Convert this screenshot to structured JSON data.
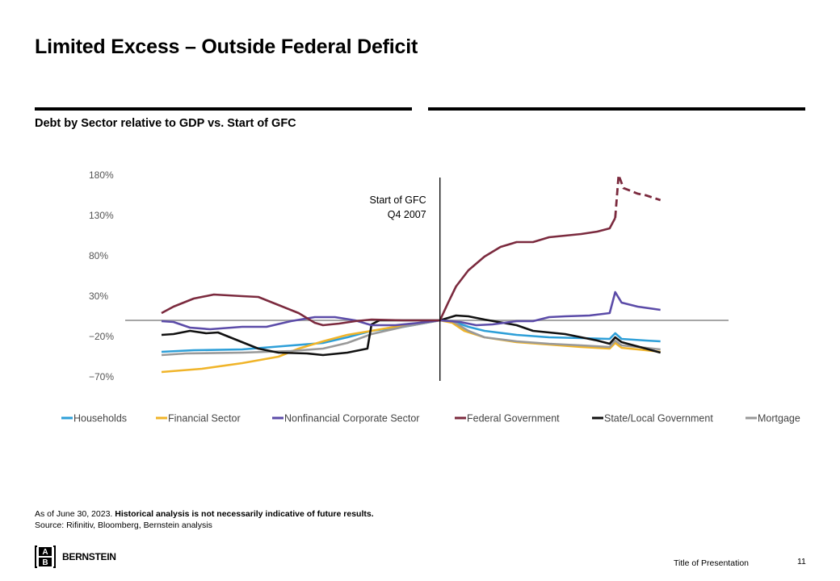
{
  "page": {
    "title": "Limited Excess – Outside Federal Deficit",
    "subtitle": "Debt by Sector relative to GDP vs. Start of GFC",
    "footnote_prefix": "As of June 30, 2023. ",
    "footnote_bold": "Historical analysis is not necessarily indicative of future results.",
    "source": "Source: Rifinitiv, Bloomberg, Bernstein analysis",
    "logo_letters": [
      "A",
      "B"
    ],
    "logo_text": "BERNSTEIN",
    "presentation_title": "Title of Presentation",
    "page_number": "11"
  },
  "chart_data": {
    "type": "line",
    "title": "Debt by Sector relative to GDP vs. Start of GFC",
    "xlabel": "",
    "ylabel": "",
    "x_unit": "quarter index (relative)",
    "xlim": [
      0,
      134
    ],
    "ylim": [
      -70,
      180
    ],
    "yticks": [
      180,
      130,
      80,
      30,
      -20,
      -70
    ],
    "ytick_labels": [
      "180%",
      "130%",
      "80%",
      "30%",
      "−20%",
      "−70%"
    ],
    "baseline": 0,
    "grid": false,
    "legend_position": "bottom",
    "annotation": {
      "x": 74.5,
      "lines": [
        "Start of GFC",
        "Q4 2007"
      ]
    },
    "series": [
      {
        "name": "Households",
        "color": "#2E9FD8",
        "dashed": false,
        "points": [
          [
            0,
            -39
          ],
          [
            8.6,
            -37
          ],
          [
            21.6,
            -36
          ],
          [
            32.4,
            -32
          ],
          [
            43.2,
            -28
          ],
          [
            49.7,
            -21
          ],
          [
            56.2,
            -13
          ],
          [
            64.8,
            -8
          ],
          [
            74.5,
            0
          ],
          [
            77.8,
            -1
          ],
          [
            82.1,
            -8
          ],
          [
            86.4,
            -13
          ],
          [
            95.0,
            -18
          ],
          [
            103.7,
            -21
          ],
          [
            112.3,
            -22
          ],
          [
            119.9,
            -23
          ],
          [
            121.4,
            -16
          ],
          [
            123.1,
            -23
          ],
          [
            129.6,
            -25
          ],
          [
            133.5,
            -26
          ]
        ]
      },
      {
        "name": "Financial Sector",
        "color": "#F0B429",
        "dashed": false,
        "points": [
          [
            0,
            -64
          ],
          [
            10.8,
            -60
          ],
          [
            21.6,
            -53
          ],
          [
            31.3,
            -45
          ],
          [
            36.7,
            -35
          ],
          [
            43.2,
            -26
          ],
          [
            49.7,
            -18
          ],
          [
            56.2,
            -13
          ],
          [
            64.8,
            -6
          ],
          [
            74.5,
            0
          ],
          [
            77.8,
            -3
          ],
          [
            81.0,
            -13
          ],
          [
            86.4,
            -21
          ],
          [
            95.0,
            -27
          ],
          [
            103.7,
            -30
          ],
          [
            112.3,
            -33
          ],
          [
            119.9,
            -35
          ],
          [
            121.4,
            -28
          ],
          [
            123.1,
            -34
          ],
          [
            129.6,
            -37
          ],
          [
            133.5,
            -39
          ]
        ]
      },
      {
        "name": "Nonfinancial Corporate Sector",
        "color": "#5B4BA8",
        "dashed": false,
        "points": [
          [
            0,
            -1
          ],
          [
            3.2,
            -2
          ],
          [
            7.6,
            -9
          ],
          [
            13.0,
            -11
          ],
          [
            21.6,
            -8
          ],
          [
            28.1,
            -8
          ],
          [
            34.6,
            -1
          ],
          [
            41.0,
            4
          ],
          [
            46.4,
            4
          ],
          [
            51.8,
            0
          ],
          [
            56.2,
            -6
          ],
          [
            62.6,
            -6
          ],
          [
            69.1,
            -3
          ],
          [
            74.5,
            0
          ],
          [
            79.9,
            -2
          ],
          [
            84.2,
            -6
          ],
          [
            88.6,
            -5
          ],
          [
            95.0,
            -1
          ],
          [
            99.4,
            -1
          ],
          [
            103.7,
            4
          ],
          [
            108.0,
            5
          ],
          [
            114.5,
            6
          ],
          [
            119.9,
            9
          ],
          [
            121.4,
            35
          ],
          [
            123.1,
            22
          ],
          [
            127.4,
            17
          ],
          [
            133.5,
            13
          ]
        ]
      },
      {
        "name": "Federal Government",
        "color": "#7B2A3E",
        "dashed": false,
        "points": [
          [
            0,
            9
          ],
          [
            3.2,
            17
          ],
          [
            8.6,
            27
          ],
          [
            14.0,
            32
          ],
          [
            21.6,
            30
          ],
          [
            25.9,
            29
          ],
          [
            31.3,
            19
          ],
          [
            36.7,
            9
          ],
          [
            41.0,
            -3
          ],
          [
            43.2,
            -6
          ],
          [
            47.5,
            -4
          ],
          [
            51.8,
            -1
          ],
          [
            56.2,
            1
          ],
          [
            64.8,
            0
          ],
          [
            71.3,
            0
          ],
          [
            74.5,
            0
          ],
          [
            76.7,
            22
          ],
          [
            78.8,
            42
          ],
          [
            82.1,
            62
          ],
          [
            86.4,
            79
          ],
          [
            90.7,
            91
          ],
          [
            95.0,
            97
          ],
          [
            99.4,
            97
          ],
          [
            103.7,
            103
          ],
          [
            108.0,
            105
          ],
          [
            112.3,
            107
          ],
          [
            116.6,
            110
          ],
          [
            119.9,
            114
          ],
          [
            121.4,
            127
          ]
        ],
        "continuation": {
          "dashed": true,
          "points": [
            [
              121.4,
              127
            ],
            [
              122.3,
              180
            ],
            [
              123.6,
              164
            ],
            [
              127.4,
              157
            ],
            [
              129.6,
              155
            ],
            [
              133.5,
              149
            ]
          ]
        }
      },
      {
        "name": "State/Local Government",
        "color": "#111111",
        "dashed": false,
        "points": [
          [
            0,
            -18
          ],
          [
            3.2,
            -17
          ],
          [
            7.6,
            -13
          ],
          [
            11.9,
            -16
          ],
          [
            15.1,
            -15
          ],
          [
            19.4,
            -23
          ],
          [
            25.9,
            -35
          ],
          [
            31.3,
            -40
          ],
          [
            38.9,
            -41
          ],
          [
            43.2,
            -43
          ],
          [
            49.7,
            -40
          ],
          [
            55.1,
            -35
          ],
          [
            56.2,
            -5
          ],
          [
            58.3,
            0
          ],
          [
            69.1,
            0
          ],
          [
            74.5,
            0
          ],
          [
            78.8,
            6
          ],
          [
            82.1,
            5
          ],
          [
            86.4,
            1
          ],
          [
            95.0,
            -6
          ],
          [
            99.4,
            -13
          ],
          [
            108.0,
            -17
          ],
          [
            116.6,
            -25
          ],
          [
            119.9,
            -29
          ],
          [
            121.4,
            -21
          ],
          [
            123.1,
            -27
          ],
          [
            129.6,
            -35
          ],
          [
            133.5,
            -40
          ]
        ]
      },
      {
        "name": "Mortgage",
        "color": "#999999",
        "dashed": false,
        "points": [
          [
            0,
            -43
          ],
          [
            6.5,
            -41
          ],
          [
            21.6,
            -40
          ],
          [
            34.6,
            -38
          ],
          [
            43.2,
            -35
          ],
          [
            49.7,
            -28
          ],
          [
            56.2,
            -17
          ],
          [
            64.8,
            -8
          ],
          [
            74.5,
            0
          ],
          [
            77.8,
            -1
          ],
          [
            82.1,
            -13
          ],
          [
            86.4,
            -21
          ],
          [
            95.0,
            -26
          ],
          [
            103.7,
            -29
          ],
          [
            112.3,
            -31
          ],
          [
            119.9,
            -33
          ],
          [
            121.4,
            -25
          ],
          [
            123.1,
            -31
          ],
          [
            129.6,
            -34
          ],
          [
            133.5,
            -36
          ]
        ]
      }
    ]
  }
}
